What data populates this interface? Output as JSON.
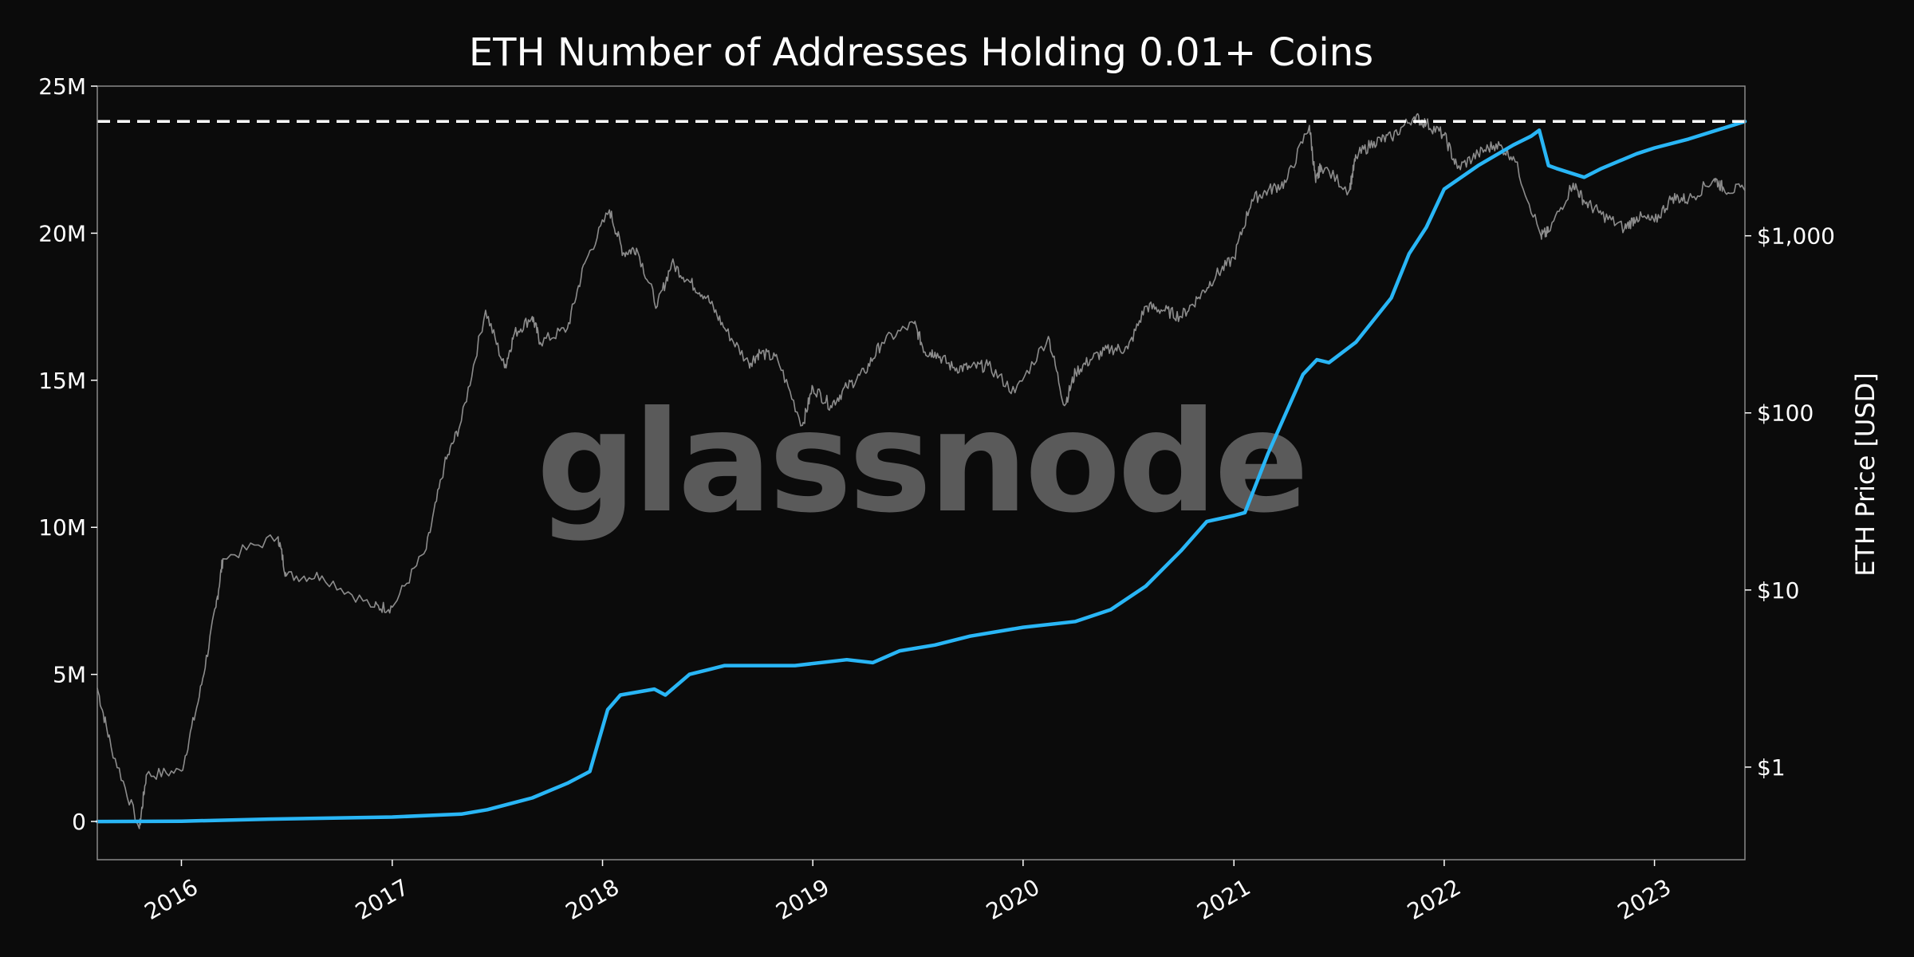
{
  "chart_data": {
    "type": "line",
    "title": "ETH Number of Addresses Holding 0.01+ Coins",
    "watermark": "glassnode",
    "x_tick_labels": [
      "2016",
      "2017",
      "2018",
      "2019",
      "2020",
      "2021",
      "2022",
      "2023"
    ],
    "xlim": [
      "2015-08-08",
      "2023-06-07"
    ],
    "y_left": {
      "ylim": [
        -1300000,
        25000000
      ],
      "tick_values": [
        0,
        5000000,
        10000000,
        15000000,
        20000000,
        25000000
      ],
      "tick_labels": [
        "0",
        "5M",
        "10M",
        "15M",
        "20M",
        "25M"
      ]
    },
    "y_right": {
      "label": "ETH Price [USD]",
      "scale": "log",
      "ylim": [
        0.3,
        7000
      ],
      "tick_values": [
        1,
        10,
        100,
        1000
      ],
      "tick_labels": [
        "$1",
        "$10",
        "$100",
        "$1,000"
      ]
    },
    "ath_line_value": 23800000,
    "colors": {
      "background": "#0b0b0b",
      "addresses": "#29b6f6",
      "price": "#8c8c8c",
      "ath_line": "#ffffff",
      "text": "#ffffff"
    },
    "series": [
      {
        "axis": "left",
        "x": [
          "2015-08-08",
          "2016-01-01",
          "2016-06-01",
          "2017-01-01",
          "2017-05-01",
          "2017-06-15",
          "2017-09-01",
          "2017-11-01",
          "2017-12-10",
          "2018-01-10",
          "2018-02-01",
          "2018-04-01",
          "2018-04-20",
          "2018-06-01",
          "2018-08-01",
          "2018-10-01",
          "2018-12-01",
          "2019-03-01",
          "2019-04-15",
          "2019-06-01",
          "2019-08-01",
          "2019-10-01",
          "2020-01-01",
          "2020-04-01",
          "2020-06-01",
          "2020-08-01",
          "2020-10-01",
          "2020-11-15",
          "2021-01-01",
          "2021-01-20",
          "2021-03-01",
          "2021-05-01",
          "2021-05-25",
          "2021-06-15",
          "2021-08-01",
          "2021-10-01",
          "2021-11-01",
          "2021-12-01",
          "2022-01-01",
          "2022-03-01",
          "2022-05-01",
          "2022-06-01",
          "2022-06-15",
          "2022-07-01",
          "2022-07-15",
          "2022-09-01",
          "2022-10-01",
          "2022-12-01",
          "2023-01-01",
          "2023-03-01",
          "2023-06-07"
        ],
        "y": [
          0,
          10000,
          80000,
          150000,
          250000,
          400000,
          800000,
          1300000,
          1700000,
          3800000,
          4300000,
          4500000,
          4300000,
          5000000,
          5300000,
          5300000,
          5300000,
          5500000,
          5400000,
          5800000,
          6000000,
          6300000,
          6600000,
          6800000,
          7200000,
          8000000,
          9200000,
          10200000,
          10400000,
          10500000,
          12500000,
          15200000,
          15700000,
          15600000,
          16300000,
          17800000,
          19300000,
          20200000,
          21500000,
          22300000,
          23000000,
          23300000,
          23500000,
          22300000,
          22200000,
          21900000,
          22200000,
          22700000,
          22900000,
          23200000,
          23800000
        ]
      },
      {
        "axis": "right",
        "x": [
          "2015-08-08",
          "2015-09-01",
          "2015-10-20",
          "2015-11-01",
          "2016-01-01",
          "2016-02-01",
          "2016-03-01",
          "2016-03-13",
          "2016-06-17",
          "2016-07-01",
          "2016-09-01",
          "2016-12-01",
          "2017-01-01",
          "2017-03-01",
          "2017-04-01",
          "2017-05-01",
          "2017-06-12",
          "2017-07-15",
          "2017-08-01",
          "2017-09-01",
          "2017-09-15",
          "2017-11-01",
          "2017-12-01",
          "2018-01-13",
          "2018-02-06",
          "2018-03-01",
          "2018-04-06",
          "2018-05-01",
          "2018-06-01",
          "2018-07-01",
          "2018-08-01",
          "2018-09-12",
          "2018-10-01",
          "2018-11-01",
          "2018-12-14",
          "2019-01-01",
          "2019-02-01",
          "2019-03-01",
          "2019-04-01",
          "2019-05-01",
          "2019-06-26",
          "2019-07-15",
          "2019-08-01",
          "2019-09-01",
          "2019-10-01",
          "2019-11-01",
          "2019-12-18",
          "2020-02-14",
          "2020-03-13",
          "2020-04-01",
          "2020-05-01",
          "2020-06-01",
          "2020-07-01",
          "2020-08-01",
          "2020-09-01",
          "2020-10-01",
          "2020-11-01",
          "2020-12-01",
          "2021-01-01",
          "2021-02-01",
          "2021-03-01",
          "2021-04-01",
          "2021-05-12",
          "2021-05-23",
          "2021-06-01",
          "2021-07-20",
          "2021-08-01",
          "2021-09-01",
          "2021-10-01",
          "2021-11-10",
          "2021-12-01",
          "2022-01-01",
          "2022-01-24",
          "2022-03-01",
          "2022-04-01",
          "2022-05-01",
          "2022-06-18",
          "2022-07-01",
          "2022-08-13",
          "2022-09-01",
          "2022-10-01",
          "2022-11-10",
          "2022-12-01",
          "2023-01-01",
          "2023-02-01",
          "2023-03-01",
          "2023-04-15",
          "2023-05-01",
          "2023-06-07"
        ],
        "y": [
          2.8,
          1.3,
          0.45,
          0.9,
          0.95,
          2.5,
          8,
          15,
          20,
          12,
          12,
          8,
          8,
          17,
          50,
          90,
          380,
          180,
          280,
          350,
          250,
          300,
          700,
          1400,
          800,
          850,
          400,
          700,
          550,
          450,
          300,
          190,
          220,
          200,
          85,
          140,
          110,
          140,
          170,
          250,
          320,
          220,
          220,
          180,
          180,
          185,
          130,
          270,
          110,
          170,
          205,
          230,
          230,
          400,
          380,
          350,
          450,
          600,
          750,
          1600,
          1800,
          2000,
          4200,
          2000,
          2500,
          1800,
          2800,
          3400,
          3600,
          4700,
          4300,
          3700,
          2400,
          2900,
          3300,
          2800,
          1000,
          1050,
          1980,
          1570,
          1320,
          1100,
          1280,
          1200,
          1650,
          1600,
          2100,
          1850,
          1800
        ]
      }
    ]
  }
}
